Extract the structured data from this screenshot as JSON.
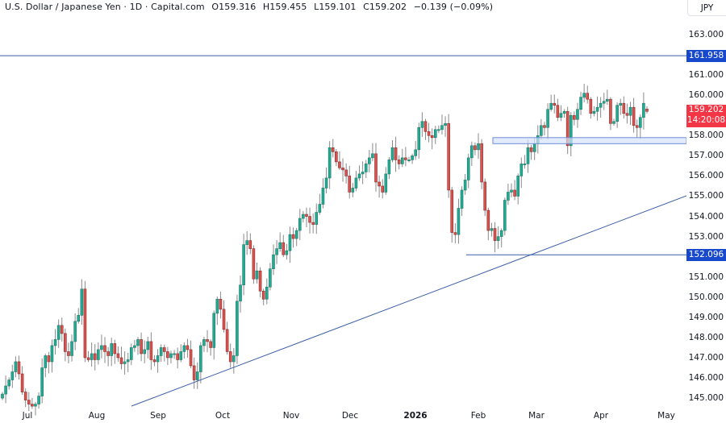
{
  "header": {
    "symbol": "U.S. Dollar / Japanese Yen · 1D · Capital.com",
    "open": "O159.316",
    "high": "H159.455",
    "low": "L159.101",
    "close": "C159.202",
    "change": "−0.139 (−0.09%)"
  },
  "currency_label": "JPY",
  "colors": {
    "up": "#22ab94",
    "up_dark": "#1e7a68",
    "down": "#d9534f",
    "wick": "#8a8a8a",
    "line": "#3d5fa8",
    "zone_fill": "#d6e2fb",
    "zone_border": "#6f8fd6",
    "badge_blue": "#1848cc",
    "badge_red": "#f23645"
  },
  "badges": {
    "resistance": "161.958",
    "support": "152.096",
    "last_price": "159.202",
    "countdown": "14:20:08"
  },
  "chart_data": {
    "type": "candlestick",
    "title": "U.S. Dollar / Japanese Yen · 1D · Capital.com",
    "ylabel": "JPY",
    "ylim": [
      144.5,
      163.5
    ],
    "y_ticks": [
      "163.000",
      "161.000",
      "160.000",
      "158.000",
      "157.000",
      "156.000",
      "155.000",
      "154.000",
      "153.000",
      "151.000",
      "150.000",
      "149.000",
      "148.000",
      "147.000",
      "146.000",
      "145.000"
    ],
    "x_ticks": [
      "Jul",
      "Aug",
      "Sep",
      "Oct",
      "Nov",
      "Dec",
      "2026",
      "Feb",
      "Mar",
      "Apr",
      "May"
    ],
    "last": {
      "open": 159.316,
      "high": 159.455,
      "low": 159.101,
      "close": 159.202
    },
    "annotations": {
      "horizontal_line_resistance": 161.958,
      "horizontal_line_support": 152.096,
      "support_zone": [
        157.6,
        157.9
      ],
      "ascending_trendline": {
        "from": [
          "mid-Aug",
          144.6
        ],
        "to": [
          "late-Apr",
          155.0
        ]
      }
    },
    "closes_approx": [
      145.2,
      145.6,
      145.9,
      146.3,
      146.8,
      146.2,
      145.3,
      144.9,
      144.7,
      144.6,
      144.7,
      145.1,
      146.5,
      147.1,
      146.8,
      147.6,
      147.9,
      148.6,
      148.2,
      147.3,
      147.1,
      147.8,
      148.8,
      149.1,
      150.4,
      147.0,
      146.9,
      147.2,
      146.9,
      147.4,
      147.6,
      147.3,
      147.1,
      147.7,
      147.2,
      147.0,
      146.7,
      146.8,
      146.9,
      147.5,
      147.6,
      147.9,
      147.2,
      147.4,
      147.8,
      146.9,
      146.8,
      147.1,
      147.5,
      147.3,
      147.0,
      147.2,
      147.2,
      146.9,
      147.3,
      147.6,
      147.4,
      146.6,
      145.9,
      146.3,
      147.6,
      147.9,
      147.8,
      147.5,
      149.2,
      149.9,
      149.4,
      148.4,
      147.3,
      146.8,
      147.1,
      149.8,
      150.6,
      152.6,
      152.8,
      152.4,
      150.9,
      151.3,
      150.3,
      149.9,
      150.5,
      151.4,
      152.1,
      152.4,
      152.7,
      152.1,
      152.3,
      153.1,
      152.9,
      153.3,
      153.9,
      154.1,
      154.0,
      153.7,
      153.6,
      154.2,
      154.6,
      155.4,
      155.9,
      157.4,
      157.2,
      156.7,
      156.4,
      156.3,
      156.0,
      155.2,
      155.4,
      155.9,
      156.1,
      156.2,
      156.6,
      156.9,
      157.1,
      155.7,
      155.5,
      155.2,
      156.1,
      156.8,
      157.4,
      156.8,
      156.6,
      156.9,
      156.8,
      156.8,
      157.0,
      157.3,
      158.4,
      158.7,
      158.2,
      158.0,
      157.9,
      158.3,
      158.3,
      158.5,
      158.6,
      155.3,
      153.2,
      153.1,
      154.4,
      155.3,
      155.8,
      156.9,
      157.5,
      157.3,
      157.6,
      155.7,
      154.3,
      153.3,
      153.4,
      152.8,
      153.0,
      153.3,
      154.8,
      155.2,
      155.3,
      155.0,
      156.0,
      156.6,
      156.6,
      157.4,
      157.2,
      157.6,
      158.0,
      158.5,
      158.4,
      159.3,
      159.6,
      159.5,
      158.9,
      159.1,
      159.2,
      157.5,
      159.0,
      158.8,
      159.3,
      159.9,
      160.1,
      159.8,
      159.1,
      159.2,
      159.4,
      159.6,
      159.7,
      159.8,
      158.6,
      158.7,
      159.5,
      159.6,
      159.1,
      159.0,
      159.4,
      158.5,
      158.4,
      158.9,
      159.6,
      159.2
    ]
  }
}
